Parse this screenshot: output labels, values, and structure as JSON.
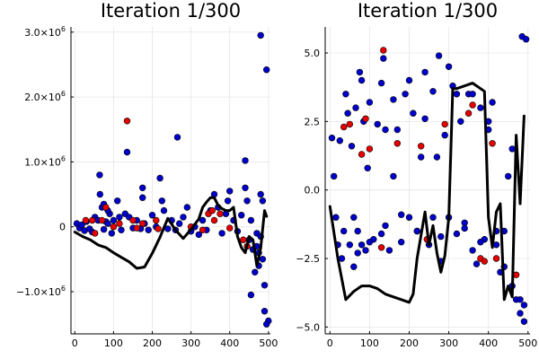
{
  "colors": {
    "blue_points": "#0000cc",
    "red_points": "#e60000",
    "curve": "#000000"
  },
  "chart_data": [
    {
      "type": "scatter",
      "title": "Iteration 1/300",
      "xlabel": "",
      "ylabel": "",
      "xlim": [
        -10,
        505
      ],
      "ylim": [
        -1650000,
        3080000
      ],
      "grid": true,
      "x_ticks": [
        0,
        100,
        200,
        300,
        400,
        500
      ],
      "x_tick_labels": [
        "0",
        "100",
        "200",
        "300",
        "400",
        "500"
      ],
      "y_ticks": [
        -1000000,
        0,
        1000000,
        2000000,
        3000000
      ],
      "y_tick_labels": [
        {
          "base": "−1.0×10",
          "exp": "6"
        },
        {
          "base": "0",
          "exp": ""
        },
        {
          "base": "1.0×10",
          "exp": "6"
        },
        {
          "base": "2.0×10",
          "exp": "6"
        },
        {
          "base": "3.0×10",
          "exp": "6"
        }
      ],
      "series": [
        {
          "color": "#0000cc",
          "kind": "points",
          "x": [
            5,
            12,
            18,
            25,
            30,
            38,
            45,
            52,
            60,
            64,
            70,
            75,
            80,
            85,
            90,
            95,
            100,
            110,
            115,
            120,
            130,
            140,
            150,
            160,
            170,
            175,
            180,
            190,
            200,
            210,
            220,
            230,
            240,
            250,
            260,
            270,
            280,
            290,
            300,
            310,
            320,
            330,
            340,
            350,
            360,
            370,
            380,
            390,
            400,
            410,
            420,
            430,
            440,
            445,
            450,
            455,
            460,
            465,
            470,
            475,
            480,
            485,
            490,
            495,
            500,
            135,
            65,
            75,
            85,
            225,
            175,
            265,
            395,
            440,
            480,
            485,
            455,
            470,
            490,
            495,
            475,
            480
          ],
          "y": [
            50000,
            -20000,
            30000,
            -60000,
            80000,
            -30000,
            -80000,
            150000,
            100000,
            800000,
            300000,
            -40000,
            80000,
            50000,
            200000,
            -100000,
            100000,
            400000,
            150000,
            -50000,
            200000,
            150000,
            -20000,
            100000,
            -30000,
            600000,
            50000,
            -50000,
            180000,
            0,
            750000,
            250000,
            -30000,
            100000,
            -50000,
            50000,
            150000,
            300000,
            -70000,
            0,
            -120000,
            100000,
            -50000,
            250000,
            500000,
            300000,
            -100000,
            200000,
            550000,
            100000,
            -70000,
            180000,
            600000,
            400000,
            -200000,
            100000,
            -350000,
            -700000,
            -100000,
            -400000,
            500000,
            -500000,
            -900000,
            2420000,
            -1450000,
            1150000,
            500000,
            350000,
            250000,
            400000,
            450000,
            1380000,
            400000,
            1020000,
            2950000,
            400000,
            -1050000,
            -300000,
            -1300000,
            -1500000,
            -600000,
            -150000
          ]
        },
        {
          "color": "#e60000",
          "kind": "points",
          "x": [
            28,
            45,
            52,
            70,
            80,
            100,
            115,
            135,
            150,
            160,
            175,
            210,
            215,
            300,
            330,
            345,
            355,
            360,
            375,
            400,
            435,
            445
          ],
          "y": [
            100000,
            100000,
            -100000,
            100000,
            300000,
            0,
            50000,
            1630000,
            100000,
            -20000,
            50000,
            100000,
            -30000,
            0,
            -50000,
            200000,
            250000,
            100000,
            200000,
            -20000,
            -200000,
            -300000
          ]
        },
        {
          "color": "#000000",
          "kind": "line",
          "x": [
            0,
            20,
            40,
            60,
            80,
            100,
            120,
            140,
            160,
            180,
            200,
            220,
            240,
            260,
            280,
            300,
            320,
            330,
            340,
            350,
            360,
            370,
            380,
            390,
            400,
            410,
            420,
            430,
            440,
            450,
            460,
            470,
            480,
            490,
            495
          ],
          "y": [
            -80000,
            -150000,
            -200000,
            -280000,
            -320000,
            -400000,
            -470000,
            -540000,
            -640000,
            -620000,
            -410000,
            -160000,
            130000,
            -50000,
            -180000,
            -40000,
            120000,
            300000,
            380000,
            450000,
            450000,
            330000,
            280000,
            250000,
            250000,
            300000,
            -150000,
            -320000,
            -400000,
            -150000,
            -200000,
            -600000,
            -330000,
            250000,
            160000
          ]
        }
      ]
    },
    {
      "type": "scatter",
      "title": "Iteration 1/300",
      "xlabel": "",
      "ylabel": "",
      "xlim": [
        -12,
        505
      ],
      "ylim": [
        -5.25,
        5.95
      ],
      "grid": true,
      "x_ticks": [
        0,
        100,
        200,
        300,
        400,
        500
      ],
      "x_tick_labels": [
        "0",
        "100",
        "200",
        "300",
        "400",
        "500"
      ],
      "y_ticks": [
        -5.0,
        -2.5,
        0.0,
        2.5,
        5.0
      ],
      "y_tick_labels": [
        {
          "base": "−5.0",
          "exp": ""
        },
        {
          "base": "−2.5",
          "exp": ""
        },
        {
          "base": "0.0",
          "exp": ""
        },
        {
          "base": "2.5",
          "exp": ""
        },
        {
          "base": "5.0",
          "exp": ""
        }
      ],
      "series": [
        {
          "color": "#0000cc",
          "kind": "points",
          "x": [
            5,
            10,
            15,
            20,
            25,
            30,
            35,
            40,
            45,
            50,
            55,
            60,
            65,
            70,
            75,
            80,
            85,
            90,
            95,
            100,
            110,
            120,
            130,
            135,
            140,
            150,
            160,
            170,
            180,
            190,
            200,
            210,
            220,
            230,
            240,
            250,
            260,
            270,
            275,
            280,
            290,
            300,
            310,
            320,
            330,
            340,
            350,
            360,
            370,
            380,
            390,
            400,
            410,
            420,
            430,
            440,
            450,
            460,
            470,
            480,
            485,
            490,
            495,
            60,
            70,
            80,
            100,
            130,
            140,
            160,
            180,
            200,
            220,
            240,
            260,
            280,
            300,
            320,
            340,
            360,
            380,
            400,
            420,
            440,
            460,
            480,
            490
          ],
          "y": [
            1.9,
            0.5,
            -1.0,
            -2.0,
            1.8,
            -2.5,
            -1.5,
            3.5,
            2.8,
            -2.0,
            1.6,
            -2.8,
            3.0,
            -1.5,
            4.3,
            -2.0,
            2.5,
            -2.2,
            0.8,
            3.2,
            -1.8,
            2.4,
            -1.6,
            4.8,
            2.2,
            -2.2,
            0.5,
            2.2,
            -1.9,
            3.5,
            -1.0,
            2.8,
            -1.5,
            1.2,
            2.6,
            -2.0,
            3.6,
            1.2,
            4.9,
            -1.7,
            2.0,
            -1.0,
            3.8,
            -1.6,
            2.5,
            -1.2,
            3.5,
            -2.2,
            -2.7,
            3.0,
            -1.8,
            2.5,
            3.2,
            -2.0,
            -3.0,
            -1.5,
            0.5,
            -3.5,
            -4.0,
            -4.5,
            5.6,
            -4.8,
            5.5,
            -1.0,
            -2.3,
            4.0,
            -1.9,
            3.9,
            -1.3,
            3.3,
            -0.9,
            4.0,
            -1.5,
            4.3,
            -1.0,
            -2.6,
            4.5,
            3.5,
            -1.4,
            3.5,
            -1.9,
            2.2,
            -1.5,
            -2.8,
            1.5,
            -4.0,
            -4.2
          ]
        },
        {
          "color": "#e60000",
          "kind": "points",
          "x": [
            35,
            50,
            80,
            90,
            100,
            130,
            135,
            170,
            230,
            245,
            290,
            350,
            360,
            380,
            390,
            410,
            420,
            470
          ],
          "y": [
            2.3,
            2.4,
            1.3,
            2.6,
            1.5,
            -2.1,
            5.1,
            1.7,
            1.6,
            -1.8,
            2.4,
            2.8,
            3.1,
            -2.5,
            -2.6,
            1.7,
            -2.5,
            -3.1
          ]
        },
        {
          "color": "#000000",
          "kind": "line",
          "x": [
            0,
            20,
            40,
            60,
            80,
            100,
            120,
            140,
            160,
            180,
            200,
            210,
            220,
            240,
            250,
            260,
            270,
            280,
            290,
            300,
            310,
            320,
            340,
            360,
            380,
            390,
            400,
            410,
            420,
            430,
            440,
            450,
            460,
            470,
            480,
            490
          ],
          "y": [
            -0.6,
            -2.5,
            -4.0,
            -3.7,
            -3.5,
            -3.5,
            -3.6,
            -3.8,
            -3.9,
            -4.0,
            -4.1,
            -3.8,
            -2.5,
            -0.8,
            -2.0,
            -1.3,
            -2.3,
            -3.0,
            -2.4,
            -1.0,
            3.7,
            3.7,
            3.8,
            3.9,
            3.7,
            3.6,
            -1.0,
            -2.1,
            -0.8,
            -0.5,
            -4.0,
            -3.5,
            -3.9,
            2.0,
            -0.5,
            2.7
          ]
        }
      ]
    }
  ]
}
